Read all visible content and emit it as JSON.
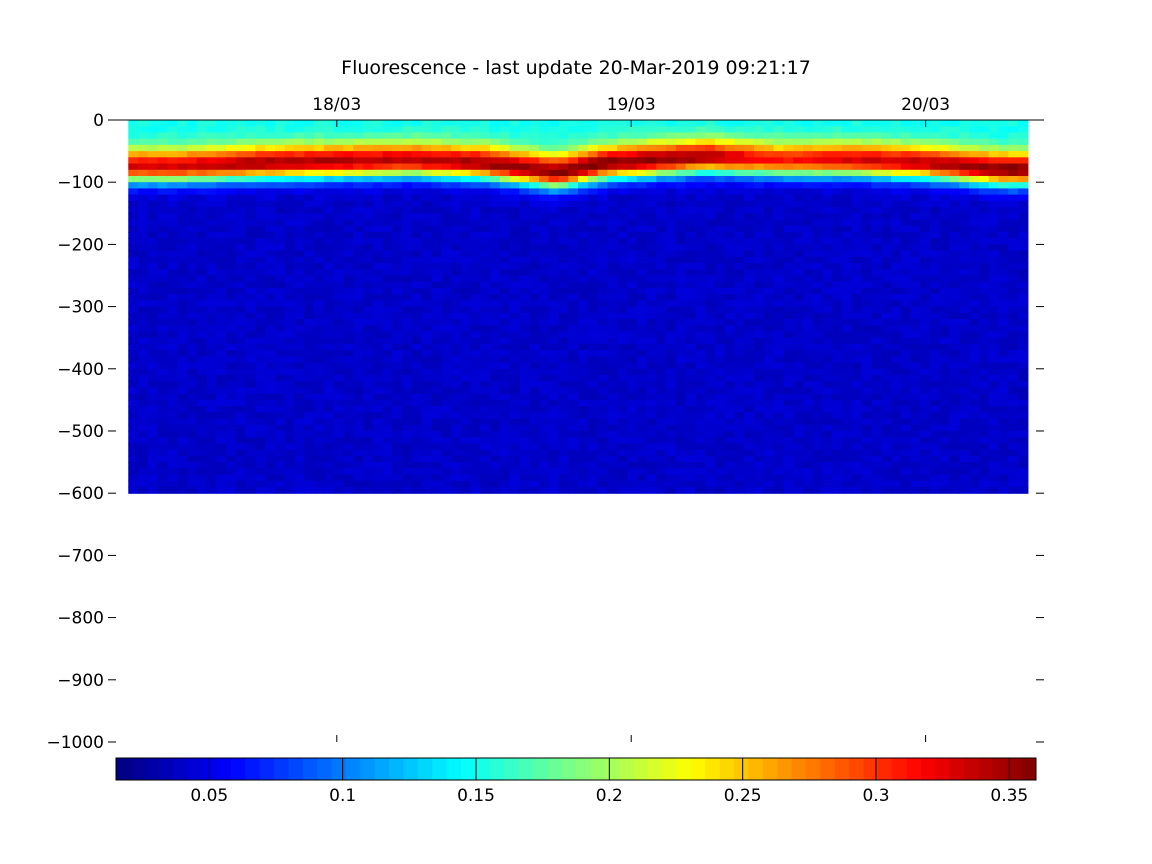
{
  "chart_data": {
    "type": "heatmap",
    "title": "Fluorescence - last update 20-Mar-2019 09:21:17",
    "xlabel": "",
    "ylabel": "",
    "x_axis": {
      "type": "date",
      "position": "top",
      "range": [
        "2019-03-17 06:00",
        "2019-03-20 09:00"
      ],
      "ticks": [
        {
          "value": "2019-03-18",
          "label": "18/03"
        },
        {
          "value": "2019-03-19",
          "label": "19/03"
        },
        {
          "value": "2019-03-20",
          "label": "20/03"
        }
      ]
    },
    "y_axis": {
      "range": [
        -1000,
        0
      ],
      "ticks": [
        0,
        -100,
        -200,
        -300,
        -400,
        -500,
        -600,
        -700,
        -800,
        -900,
        -1000
      ]
    },
    "colorbar": {
      "position": "bottom",
      "colormap": "jet",
      "range": [
        0.015,
        0.36
      ],
      "ticks": [
        0.05,
        0.1,
        0.15,
        0.2,
        0.25,
        0.3,
        0.35
      ],
      "tick_labels": [
        "0.05",
        "0.1",
        "0.15",
        "0.2",
        "0.25",
        "0.3",
        "0.35"
      ]
    },
    "data_extent": {
      "time_start": "2019-03-17 07:00",
      "time_end": "2019-03-20 08:20",
      "depth_min": -600,
      "depth_max": 0
    },
    "profile": {
      "description_points": [
        {
          "time": "2019-03-17 11:00",
          "max_depth": -75,
          "max_value": 0.33
        },
        {
          "time": "2019-03-17 18:00",
          "max_depth": -70,
          "max_value": 0.35
        },
        {
          "time": "2019-03-18 06:00",
          "max_depth": -65,
          "max_value": 0.34
        },
        {
          "time": "2019-03-18 12:00",
          "max_depth": -70,
          "max_value": 0.35
        },
        {
          "time": "2019-03-18 18:00",
          "max_depth": -85,
          "max_value": 0.36
        },
        {
          "time": "2019-03-18 22:00",
          "max_depth": -70,
          "max_value": 0.36
        },
        {
          "time": "2019-03-19 06:00",
          "max_depth": -60,
          "max_value": 0.35
        },
        {
          "time": "2019-03-19 12:00",
          "max_depth": -65,
          "max_value": 0.31
        },
        {
          "time": "2019-03-19 18:00",
          "max_depth": -65,
          "max_value": 0.33
        },
        {
          "time": "2019-03-20 00:00",
          "max_depth": -70,
          "max_value": 0.34
        },
        {
          "time": "2019-03-20 06:00",
          "max_depth": -80,
          "max_value": 0.36
        }
      ],
      "surface_value": 0.15,
      "deep_value": 0.04
    }
  }
}
